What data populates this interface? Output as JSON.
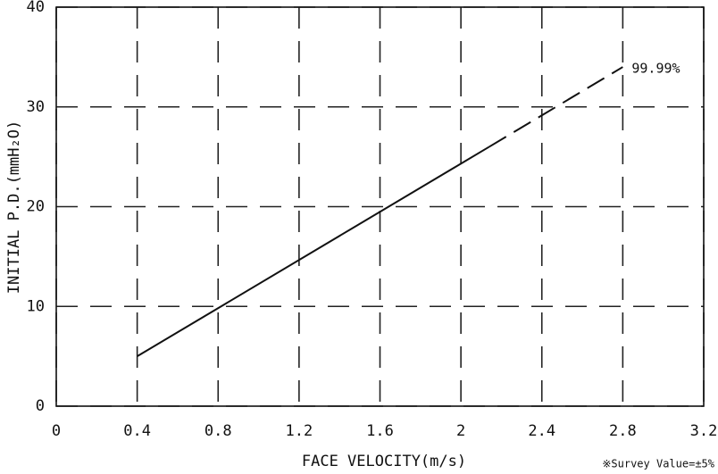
{
  "chart_data": {
    "type": "line",
    "xlabel": "FACE VELOCITY(m/s)",
    "ylabel": "INITIAL P.D.(mmH₂O)",
    "note": "※Survey Value=±5%",
    "annotation": "99.99%",
    "xlim": [
      0,
      3.2
    ],
    "xticks": [
      0,
      0.4,
      0.8,
      1.2,
      1.6,
      2,
      2.4,
      2.8,
      3.2
    ],
    "ylim": [
      0,
      40
    ],
    "yticks": [
      0,
      10,
      20,
      30,
      40
    ],
    "grid": true,
    "color": "#111111",
    "series": [
      {
        "x": [
          0.4,
          2.14
        ],
        "values": [
          5,
          26
        ],
        "style": "solid"
      },
      {
        "x": [
          2.14,
          2.8
        ],
        "values": [
          26,
          34
        ],
        "style": "dashed"
      }
    ]
  }
}
